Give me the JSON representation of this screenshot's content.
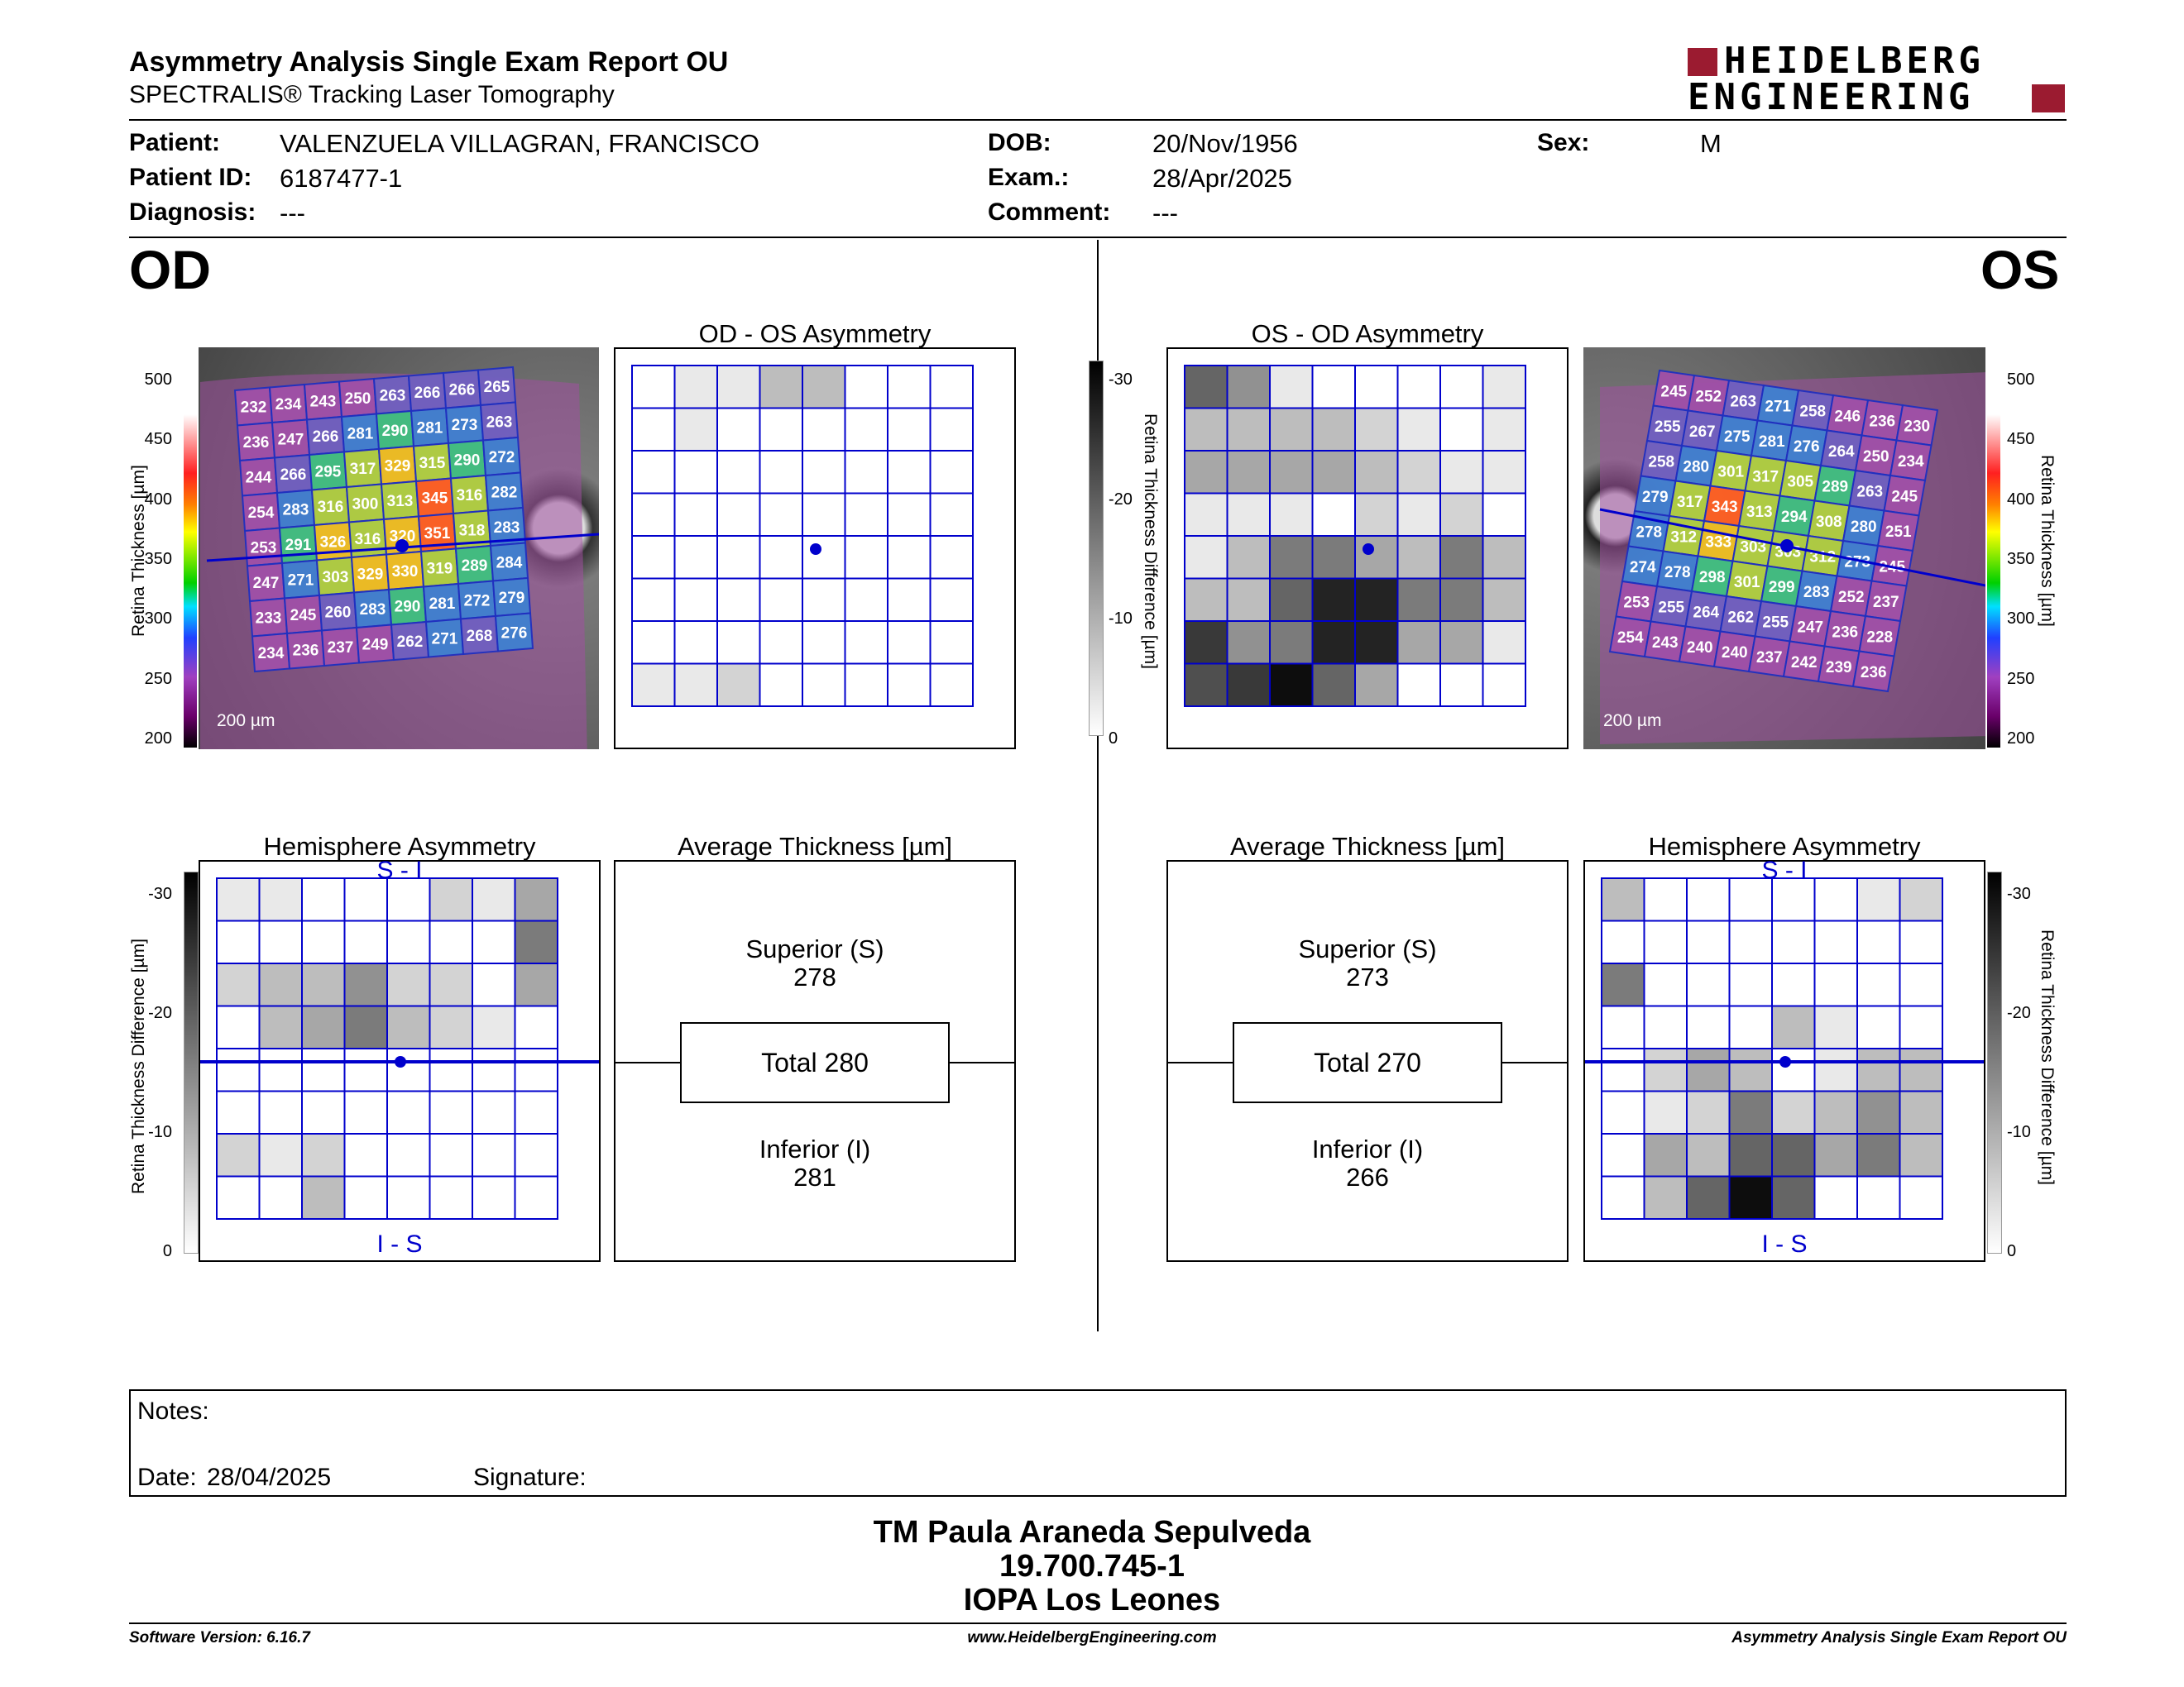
{
  "header": {
    "title": "Asymmetry Analysis Single Exam Report OU",
    "subtitle": "SPECTRALIS® Tracking Laser Tomography",
    "logo_line1": "HEIDELBERG",
    "logo_line2": "ENGINEERING"
  },
  "patient": {
    "name_label": "Patient:",
    "name": "VALENZUELA VILLAGRAN, FRANCISCO",
    "id_label": "Patient ID:",
    "id": "6187477-1",
    "diagnosis_label": "Diagnosis:",
    "diagnosis": "---",
    "dob_label": "DOB:",
    "dob": "20/Nov/1956",
    "exam_label": "Exam.:",
    "exam": "28/Apr/2025",
    "comment_label": "Comment:",
    "comment": "---",
    "sex_label": "Sex:",
    "sex": "M"
  },
  "od": {
    "eye": "OD",
    "scale_bar": "200 µm",
    "colorbar_label": "Retina Thickness [µm]",
    "colorbar_ticks": [
      "500",
      "450",
      "400",
      "350",
      "300",
      "250",
      "200"
    ],
    "thickness_grid": [
      [
        232,
        234,
        243,
        250,
        263,
        266,
        266,
        265
      ],
      [
        236,
        247,
        266,
        281,
        290,
        281,
        273,
        263
      ],
      [
        244,
        266,
        295,
        317,
        329,
        315,
        290,
        272
      ],
      [
        254,
        283,
        316,
        300,
        313,
        345,
        316,
        282
      ],
      [
        253,
        291,
        326,
        316,
        320,
        351,
        318,
        283
      ],
      [
        247,
        271,
        303,
        329,
        330,
        319,
        289,
        284
      ],
      [
        233,
        245,
        260,
        283,
        290,
        281,
        272,
        279
      ],
      [
        234,
        236,
        237,
        249,
        262,
        271,
        268,
        276
      ]
    ],
    "asym_title": "OD - OS Asymmetry",
    "asym_grid": [
      [
        0,
        1,
        1,
        3,
        3,
        0,
        0,
        0
      ],
      [
        0,
        1,
        0,
        0,
        0,
        0,
        0,
        0
      ],
      [
        0,
        0,
        0,
        0,
        0,
        0,
        0,
        0
      ],
      [
        0,
        0,
        0,
        0,
        0,
        0,
        0,
        0
      ],
      [
        0,
        0,
        0,
        0,
        0,
        0,
        0,
        0
      ],
      [
        0,
        0,
        0,
        0,
        0,
        0,
        0,
        0
      ],
      [
        0,
        0,
        0,
        0,
        0,
        0,
        0,
        0
      ],
      [
        1,
        1,
        2,
        0,
        0,
        0,
        0,
        0
      ]
    ],
    "hemi_title": "Hemisphere Asymmetry",
    "hemi_top": "S - I",
    "hemi_bottom": "I - S",
    "hemi_grid": [
      [
        1,
        1,
        0,
        0,
        0,
        2,
        1,
        4
      ],
      [
        0,
        0,
        0,
        0,
        0,
        0,
        0,
        6
      ],
      [
        2,
        3,
        3,
        5,
        2,
        2,
        0,
        4
      ],
      [
        0,
        3,
        4,
        6,
        3,
        2,
        1,
        0
      ],
      [
        0,
        0,
        0,
        0,
        0,
        0,
        0,
        0
      ],
      [
        0,
        0,
        0,
        0,
        0,
        0,
        0,
        0
      ],
      [
        2,
        1,
        2,
        0,
        0,
        0,
        0,
        0
      ],
      [
        0,
        0,
        3,
        0,
        0,
        0,
        0,
        0
      ]
    ],
    "diff_label": "Retina Thickness Difference [µm]",
    "diff_ticks": [
      "-30",
      "-20",
      "-10",
      "0"
    ],
    "avg_title": "Average Thickness [µm]",
    "superior_label": "Superior (S)",
    "superior": "278",
    "total": "Total 280",
    "inferior_label": "Inferior (I)",
    "inferior": "281"
  },
  "os": {
    "eye": "OS",
    "scale_bar": "200 µm",
    "colorbar_label": "Retina Thickness [µm]",
    "colorbar_ticks": [
      "500",
      "450",
      "400",
      "350",
      "300",
      "250",
      "200"
    ],
    "thickness_grid": [
      [
        245,
        252,
        263,
        271,
        258,
        246,
        236,
        230
      ],
      [
        255,
        267,
        275,
        281,
        276,
        264,
        250,
        234
      ],
      [
        258,
        280,
        301,
        317,
        305,
        289,
        263,
        245
      ],
      [
        279,
        317,
        343,
        313,
        294,
        308,
        280,
        251
      ],
      [
        278,
        312,
        333,
        303,
        303,
        312,
        273,
        245
      ],
      [
        274,
        278,
        298,
        301,
        299,
        283,
        252,
        237
      ],
      [
        253,
        255,
        264,
        262,
        255,
        247,
        236,
        228
      ],
      [
        254,
        243,
        240,
        240,
        237,
        242,
        239,
        236
      ]
    ],
    "asym_title": "OS - OD Asymmetry",
    "asym_grid": [
      [
        7,
        5,
        1,
        0,
        0,
        0,
        0,
        1
      ],
      [
        3,
        3,
        3,
        3,
        2,
        1,
        0,
        1
      ],
      [
        4,
        4,
        4,
        4,
        3,
        2,
        1,
        1
      ],
      [
        1,
        1,
        1,
        0,
        2,
        1,
        2,
        0
      ],
      [
        1,
        3,
        6,
        6,
        4,
        3,
        6,
        3
      ],
      [
        3,
        3,
        7,
        10,
        10,
        6,
        6,
        3
      ],
      [
        9,
        5,
        6,
        10,
        10,
        4,
        4,
        1
      ],
      [
        8,
        9,
        11,
        7,
        4,
        0,
        0,
        0
      ]
    ],
    "hemi_title": "Hemisphere Asymmetry",
    "hemi_top": "S - I",
    "hemi_bottom": "I - S",
    "hemi_grid": [
      [
        3,
        0,
        0,
        0,
        0,
        0,
        1,
        2
      ],
      [
        0,
        0,
        0,
        0,
        0,
        0,
        0,
        0
      ],
      [
        6,
        0,
        0,
        0,
        0,
        0,
        0,
        0
      ],
      [
        0,
        0,
        0,
        0,
        3,
        1,
        0,
        0
      ],
      [
        0,
        2,
        4,
        3,
        0,
        1,
        3,
        3
      ],
      [
        0,
        1,
        2,
        6,
        2,
        3,
        5,
        3
      ],
      [
        0,
        4,
        3,
        7,
        7,
        4,
        6,
        3
      ],
      [
        0,
        3,
        7,
        11,
        7,
        0,
        0,
        0
      ]
    ],
    "diff_label": "Retina Thickness Difference [µm]",
    "diff_ticks": [
      "-30",
      "-20",
      "-10",
      "0"
    ],
    "avg_title": "Average Thickness [µm]",
    "superior_label": "Superior (S)",
    "superior": "273",
    "total": "Total 270",
    "inferior_label": "Inferior (I)",
    "inferior": "266"
  },
  "notes": {
    "label": "Notes:",
    "date_label": "Date:",
    "date": "28/04/2025",
    "signature_label": "Signature:"
  },
  "signatory": {
    "line1": "TM Paula Araneda Sepulveda",
    "line2": "19.700.745-1",
    "line3": "IOPA Los Leones"
  },
  "footer": {
    "software": "Software Version: 6.16.7",
    "website": "www.HeidelbergEngineering.com",
    "report": "Asymmetry Analysis Single Exam Report OU"
  },
  "colors": {
    "grid_blue": "#0000cc",
    "logo_red": "#9b1b30"
  }
}
